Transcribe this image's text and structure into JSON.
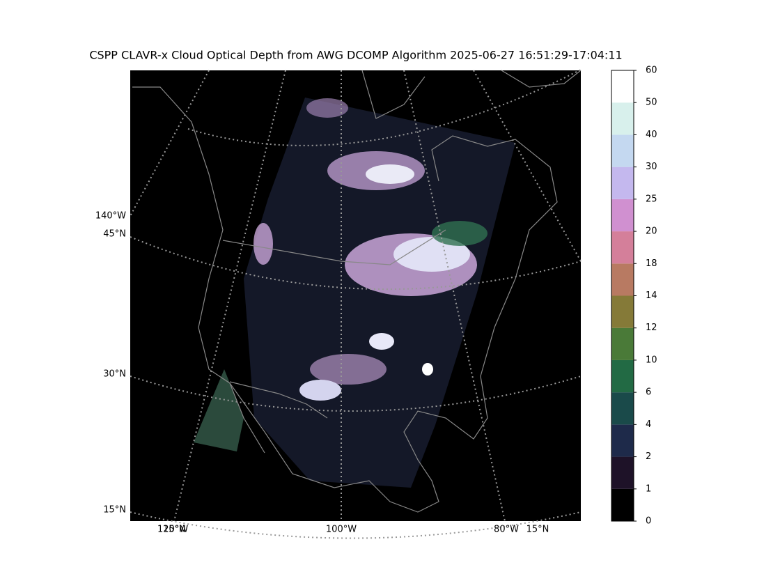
{
  "title": "CSPP CLAVR-x Cloud Optical Depth from AWG DCOMP Algorithm 2025-06-27 16:51:29-17:04:11",
  "map": {
    "labels": [
      "140°W",
      "45°N",
      "30°N",
      "15°N",
      "120°W",
      "15°N",
      "100°W",
      "80°W",
      "15°N"
    ]
  },
  "colorbar": {
    "ticks": [
      0,
      1,
      2,
      4,
      6,
      10,
      12,
      14,
      18,
      20,
      25,
      30,
      40,
      50,
      60
    ],
    "colors": [
      "#000000",
      "#1e1228",
      "#1e2a4a",
      "#1a4a4a",
      "#226a44",
      "#4a7a38",
      "#857a38",
      "#b87a62",
      "#d47f9a",
      "#d090d0",
      "#c4b8ee",
      "#c4d8f0",
      "#d8f0ec",
      "#ffffff"
    ]
  }
}
